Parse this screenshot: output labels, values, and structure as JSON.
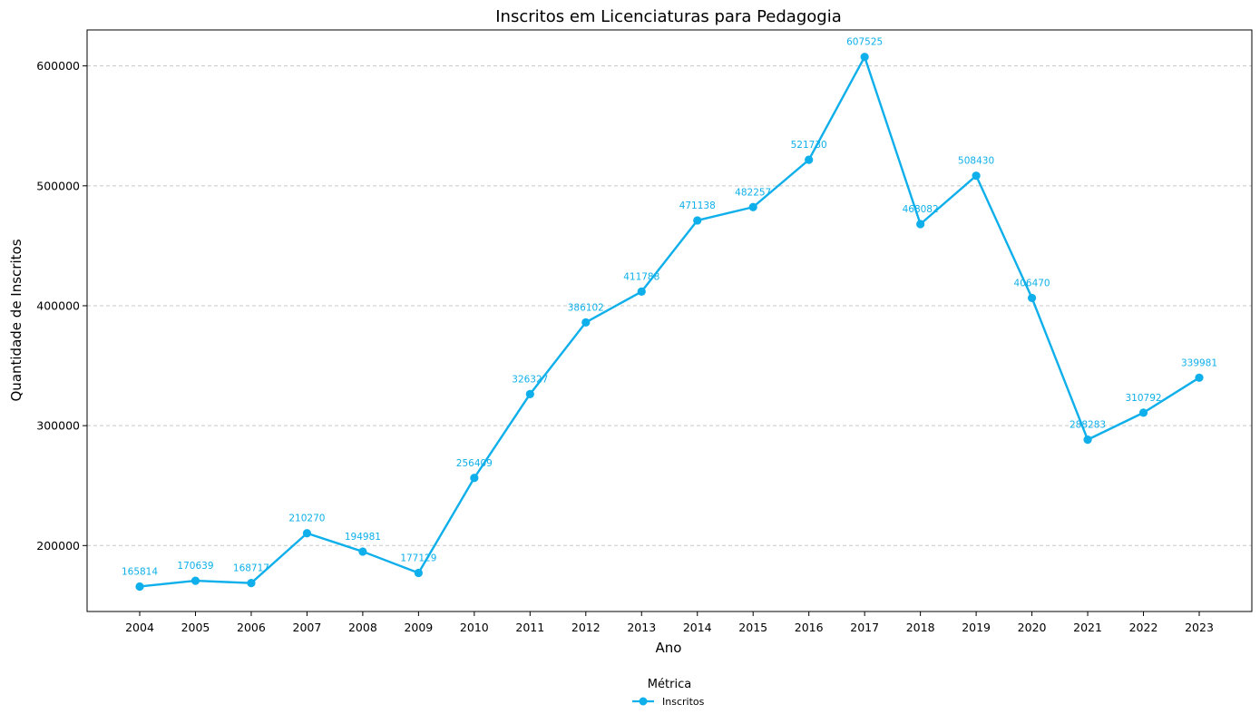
{
  "chart_data": {
    "type": "line",
    "title": "Inscritos em Licenciaturas para Pedagogia",
    "xlabel": "Ano",
    "ylabel": "Quantidade de Inscritos",
    "x": [
      "2004",
      "2005",
      "2006",
      "2007",
      "2008",
      "2009",
      "2010",
      "2011",
      "2012",
      "2013",
      "2014",
      "2015",
      "2016",
      "2017",
      "2018",
      "2019",
      "2020",
      "2021",
      "2022",
      "2023"
    ],
    "series": [
      {
        "name": "Inscritos",
        "color": "#0eafea",
        "values": [
          165814,
          170639,
          168717,
          210270,
          194981,
          177129,
          256409,
          326327,
          386102,
          411788,
          471138,
          482257,
          521730,
          607525,
          468082,
          508430,
          406470,
          288283,
          310792,
          339981
        ]
      }
    ],
    "yticks": [
      200000,
      300000,
      400000,
      500000,
      600000
    ],
    "ylim": [
      145000,
      630000
    ],
    "grid": "y-dashed",
    "legend": {
      "title": "Métrica",
      "placement": "bottom-center"
    }
  }
}
